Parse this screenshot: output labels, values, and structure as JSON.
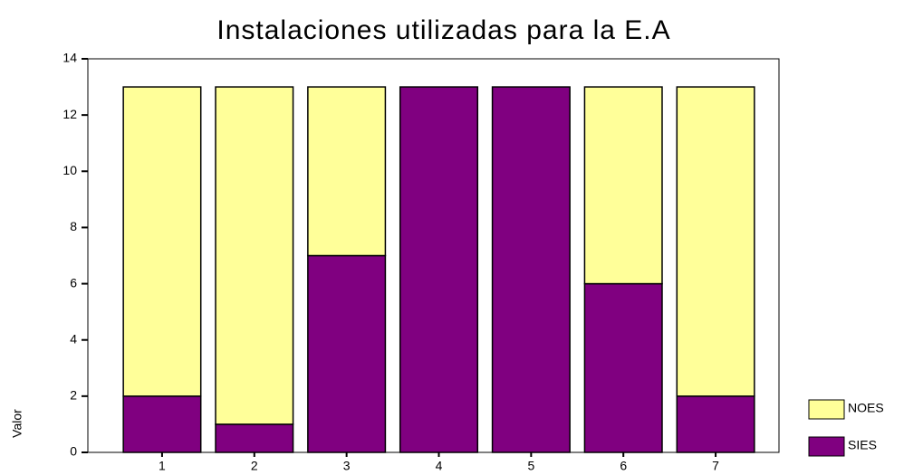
{
  "chart_data": {
    "type": "stacked_bar",
    "title": "Instalaciones utilizadas para la E.A",
    "ylabel": "Valor",
    "categories": [
      "1",
      "2",
      "3",
      "4",
      "5",
      "6",
      "7"
    ],
    "series": [
      {
        "name": "SIES",
        "color": "#800080",
        "values": [
          2,
          1,
          7,
          13,
          13,
          6,
          2
        ]
      },
      {
        "name": "NOES",
        "color": "#ffff99",
        "values": [
          11,
          12,
          6,
          0,
          0,
          7,
          11
        ]
      }
    ],
    "ylim": [
      0,
      14
    ],
    "yticks": [
      0,
      2,
      4,
      6,
      8,
      10,
      12,
      14
    ],
    "legend": "right"
  }
}
